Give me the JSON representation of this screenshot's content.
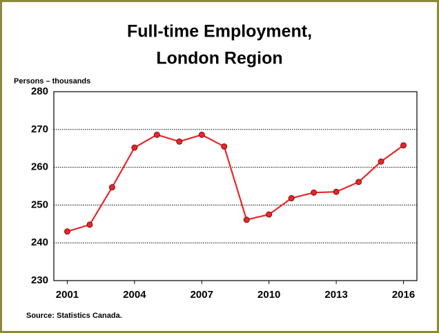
{
  "chart_data": {
    "type": "line",
    "title": [
      "Full-time Employment,",
      "London Region"
    ],
    "y_label": "Persons – thousands",
    "source": "Source: Statistics Canada.",
    "x": [
      2001,
      2002,
      2003,
      2004,
      2005,
      2006,
      2007,
      2008,
      2009,
      2010,
      2011,
      2012,
      2013,
      2014,
      2015,
      2016
    ],
    "series": [
      {
        "name": "Full-time employment",
        "color": "#e8262a",
        "values": [
          243.0,
          244.8,
          254.7,
          265.2,
          268.6,
          266.8,
          268.6,
          265.5,
          246.1,
          247.5,
          251.8,
          253.3,
          253.5,
          256.1,
          261.5,
          265.8
        ]
      }
    ],
    "xlim": [
      2000.4,
      2016.6
    ],
    "xticks": [
      2001,
      2004,
      2007,
      2010,
      2013,
      2016
    ],
    "ylim": [
      230,
      280
    ],
    "yticks": [
      230,
      240,
      250,
      260,
      270,
      280
    ],
    "grid": true
  }
}
